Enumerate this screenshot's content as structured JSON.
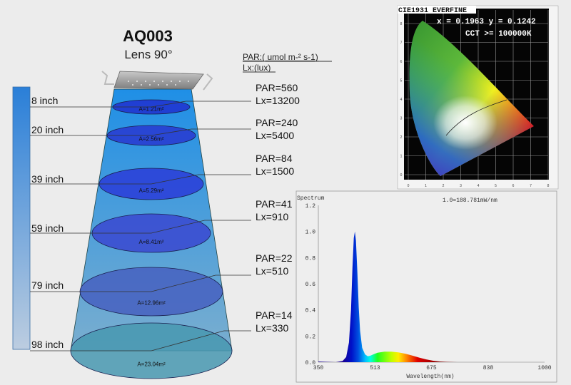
{
  "header": {
    "model": "AQ003",
    "lens": "Lens 90°"
  },
  "units": {
    "par": "PAR:( umol m-² s-1)",
    "lux": "Lx:(lux)"
  },
  "levels": [
    {
      "distance": "8 inch",
      "area": "A=1.21m²",
      "par": "PAR=560",
      "lux": "Lx=13200"
    },
    {
      "distance": "20 inch",
      "area": "A=2.56m²",
      "par": "PAR=240",
      "lux": "Lx=5400"
    },
    {
      "distance": "39 inch",
      "area": "A=5.29m²",
      "par": "PAR=84",
      "lux": "Lx=1500"
    },
    {
      "distance": "59 inch",
      "area": "A=8.41m²",
      "par": "PAR=41",
      "lux": "Lx=910"
    },
    {
      "distance": "79 inch",
      "area": "A=12.96m²",
      "par": "PAR=22",
      "lux": "Lx=510"
    },
    {
      "distance": "98 inch",
      "area": "A=23.04m²",
      "par": "PAR=14",
      "lux": "Lx=330"
    }
  ],
  "cie": {
    "title": "CIE1931 EVERFINE",
    "coords": "x = 0.1963 y = 0.1242",
    "cct": "CCT >= 100000K",
    "ticks": [
      "0",
      "1",
      "2",
      "3",
      "4",
      "5",
      "6",
      "7",
      "8"
    ]
  },
  "colors": {
    "cone_top": "#1f8fe6",
    "cone_bottom": "#6fa9cf",
    "ellipse": "#2a3cd8",
    "scale_bar_top": "#2a7fd8"
  },
  "chart_data": {
    "type": "area",
    "title": "Spectrum",
    "annotation": "1.0=188.781mW/nm",
    "xlabel": "Wavelength(nm)",
    "ylabel": "",
    "xlim": [
      350,
      1000
    ],
    "ylim": [
      0,
      1.2
    ],
    "x_ticks": [
      "350",
      "513",
      "675",
      "838",
      "1000"
    ],
    "y_ticks": [
      "0.0",
      "0.2",
      "0.4",
      "0.6",
      "0.8",
      "1.0",
      "1.2"
    ],
    "grid": false,
    "x": [
      350,
      400,
      420,
      430,
      438,
      444,
      448,
      452,
      455,
      458,
      462,
      466,
      470,
      476,
      484,
      492,
      500,
      510,
      520,
      540,
      560,
      580,
      600,
      620,
      640,
      660,
      680,
      700,
      720,
      750,
      800,
      1000
    ],
    "y": [
      0.005,
      0.0,
      0.01,
      0.04,
      0.15,
      0.4,
      0.72,
      0.95,
      1.0,
      0.93,
      0.7,
      0.42,
      0.24,
      0.11,
      0.06,
      0.045,
      0.05,
      0.062,
      0.072,
      0.08,
      0.08,
      0.075,
      0.065,
      0.05,
      0.035,
      0.021,
      0.011,
      0.005,
      0.002,
      0.0,
      0.0,
      0.0
    ]
  }
}
